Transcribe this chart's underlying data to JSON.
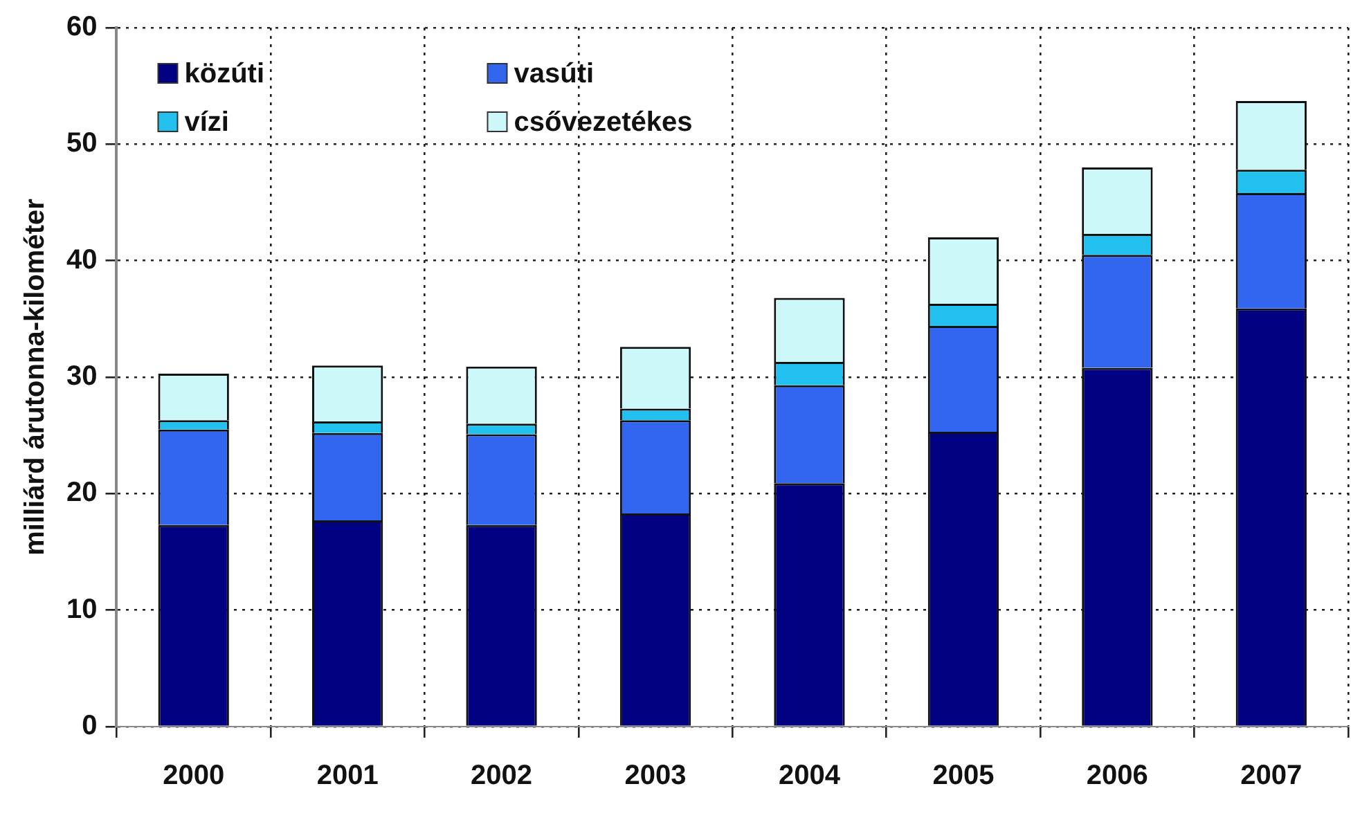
{
  "chart_data": {
    "type": "bar",
    "stacked": true,
    "ylabel": "milliárd árutonna-kilométer",
    "categories": [
      "2000",
      "2001",
      "2002",
      "2003",
      "2004",
      "2005",
      "2006",
      "2007"
    ],
    "series": [
      {
        "name": "közúti",
        "color": "#000080",
        "values": [
          17.3,
          17.7,
          17.3,
          18.3,
          20.9,
          25.3,
          30.8,
          35.9
        ]
      },
      {
        "name": "vasúti",
        "color": "#3366ee",
        "values": [
          8.2,
          7.5,
          7.8,
          8.0,
          8.4,
          9.1,
          9.7,
          9.9
        ]
      },
      {
        "name": "vízi",
        "color": "#22c0ee",
        "values": [
          0.8,
          1.0,
          0.9,
          1.0,
          2.0,
          1.9,
          1.8,
          2.0
        ]
      },
      {
        "name": "csővezetékes",
        "color": "#ccf8fa",
        "values": [
          4.0,
          4.8,
          4.9,
          5.3,
          5.5,
          5.7,
          5.7,
          5.9
        ]
      }
    ],
    "ylim": [
      0,
      60
    ],
    "yticks": [
      0,
      10,
      20,
      30,
      40,
      50,
      60
    ],
    "grid": true,
    "legend": "top left"
  }
}
